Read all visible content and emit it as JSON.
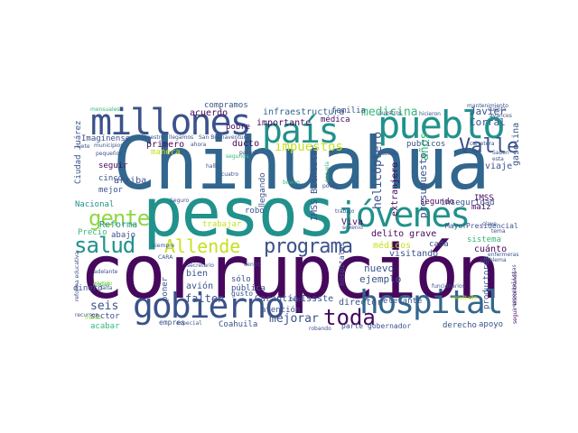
{
  "palette": {
    "dark": "#46085c",
    "indigo": "#3b528b",
    "blue": "#31668e",
    "teal": "#21918c",
    "green": "#35b779",
    "lime": "#90d743",
    "yellow": "#c8e020",
    "purple": "#482878"
  },
  "words": {
    "chihuahua": "Chihuahua",
    "corrupcion": "corrupción",
    "pesos": "pesos",
    "millones": "millones",
    "pueblo": "pueblo",
    "pais": "país",
    "jovenes": "jóvenes",
    "gobierno": "gobierno",
    "hospital": "hospital",
    "gente": "gente",
    "salud": "salud",
    "allende": "Allende",
    "programa": "programa",
    "valle": "Valle",
    "toda": "toda",
    "impuestos": "impuestos",
    "medicina": "medicina",
    "helicoptero": "helicóptero",
    "anos": "años",
    "presupuesto": "presupuesto",
    "extranjero": "extranjero",
    "ejemplo": "ejemplo",
    "nuevo": "nuevo",
    "mejorar": "mejorar",
    "seis": "seis",
    "falten": "falten",
    "acuerdo": "acuerdo",
    "compramos": "compramos",
    "infraestructura": "infraestructura",
    "familia": "familia",
    "importante": "importante",
    "medica": "médica",
    "primero": "primero",
    "ducto": "ducto",
    "reforma": "Reforma",
    "cinco": "cinco",
    "arriba": "arriba",
    "seguir": "seguir",
    "imaginense": "Imagínense",
    "ciudad_juarez": "Ciudad Juárez",
    "nacional": "Nacional",
    "precio": "Precio",
    "abajo": "abajo",
    "trabajar": "trabajar",
    "robo": "robo",
    "imss_bienestar": "IMSS Bienestar",
    "viva": "Viva",
    "delito_grave": "delito grave",
    "medicos": "médicos",
    "sistema": "sistema",
    "inseguridad": "inseguridad",
    "segundo": "segundo",
    "imss": "IMSS",
    "maiz": "maíz",
    "cuanto": "cuánto",
    "visitando": "visitando",
    "cada": "cada",
    "garantia": "Garantía",
    "issste": "Issste",
    "atencion": "atención",
    "director": "director",
    "elefante": "elefante",
    "derecho": "derecho",
    "apoyo": "apoyo",
    "gobernador": "gobernador",
    "parte": "parte",
    "coahuila": "Coahuila",
    "acabar": "acabar",
    "sector": "sector",
    "dinero": "dinero",
    "bien": "bien",
    "avion": "avión",
    "solo": "sólo",
    "gusto": "gusto",
    "publica": "pública",
    "poner": "poner",
    "javier": "Javier",
    "corral": "Corral",
    "gasolina": "gasolina",
    "viaje": "viaje",
    "publicos": "publicos",
    "mejor": "mejor",
    "pobre": "pobre",
    "manera": "manera",
    "hospitales": "hospitales",
    "productores": "productores",
    "mayor": "Mayor",
    "presidencial": "Presidencial",
    "especialistas": "especialistas",
    "empresas": "empres",
    "especial": "especial",
    "seguro": "Seguro",
    "maestro": "maestro",
    "san_buenaventura": "San Buenaventura",
    "llegamos": "llegamos",
    "mensuales": "mensuales",
    "siete": "siete",
    "municipios": "municipios",
    "pequenos": "pequeños",
    "adelante": "adelante",
    "siempre": "siempre",
    "mantenimiento": "mantenimiento",
    "hicieron": "hicieron",
    "cuenta": "cuenta",
    "avances": "avances",
    "carretera": "carretera",
    "saben": "Saben",
    "esta": "esta",
    "enfermeras": "enfermeras",
    "funcionarios": "funcionarios",
    "recursos": "recursos",
    "todas": "todas",
    "segunda": "segunda",
    "pasado": "pasado",
    "cuatro": "cuatro",
    "hallo": "hallo",
    "ahora": "ahora",
    "bueno": "bueno",
    "podia": "podía",
    "llegando": "llegando",
    "centro": "centro",
    "secretario": "secretario",
    "frijol": "frijol",
    "trabajo": "trabajo",
    "sexenio": "sexenio",
    "cara": "CARA",
    "adelante2": "adelante",
    "partido": "partido",
    "frente": "frente",
    "falta": "falta",
    "robando": "robando",
    "problema": "problema",
    "clave": "clave",
    "tema": "tema",
    "seguir_encontrando": "seguir encontrando",
    "reforma_educativa": "reforma educativa",
    "nuestros": "nuestros",
    "sueldos": "sueldos",
    "resultado": "resultado",
    "escuela": "escuela"
  }
}
